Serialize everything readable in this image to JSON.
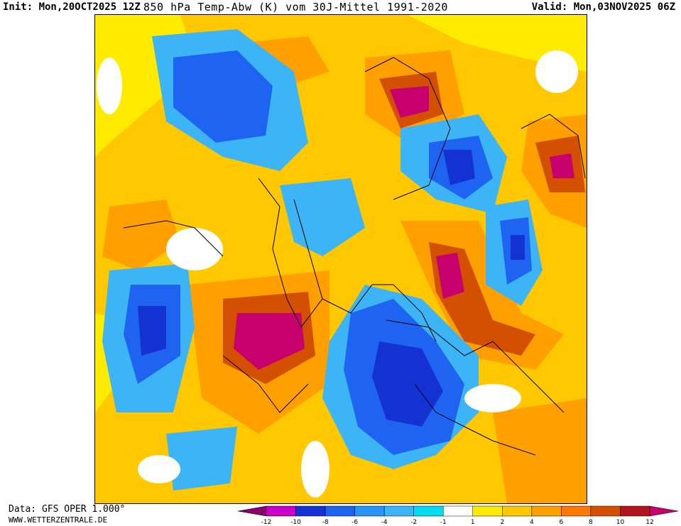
{
  "header": {
    "init": "Init: Mon,20OCT2025 12Z",
    "title": "850 hPa Temp-Abw (K) vom 30J-Mittel 1991-2020",
    "valid": "Valid: Mon,03NOV2025 06Z"
  },
  "footer": {
    "source": "Data: GFS OPER 1.000°",
    "website": "WWW.WETTERZENTRALE.DE"
  },
  "legend": {
    "ticks": [
      "-12",
      "-10",
      "-8",
      "-6",
      "-4",
      "-2",
      "-1",
      "1",
      "2",
      "4",
      "6",
      "8",
      "10",
      "12"
    ],
    "colors": [
      "#8b006b",
      "#c800c8",
      "#1432d2",
      "#1e64f0",
      "#2896f5",
      "#3cb4f5",
      "#00dcf0",
      "#ffffff",
      "#ffeb00",
      "#ffc800",
      "#ffa000",
      "#ff7800",
      "#d25000",
      "#b4141e",
      "#c8006e"
    ]
  },
  "colors": {
    "cold_extreme": "#c800c8",
    "very_cold": "#1432d2",
    "cold": "#1e64f0",
    "cool": "#2896f5",
    "slightly_cool": "#3cb4f5",
    "near_zero_cool": "#00dcf0",
    "neutral": "#ffffff",
    "slightly_warm": "#ffeb00",
    "warm": "#ffc800",
    "warmer": "#ffa000",
    "hot": "#ff7800",
    "very_hot": "#d25000",
    "hot_extreme": "#b4141e",
    "max": "#c8006e"
  }
}
